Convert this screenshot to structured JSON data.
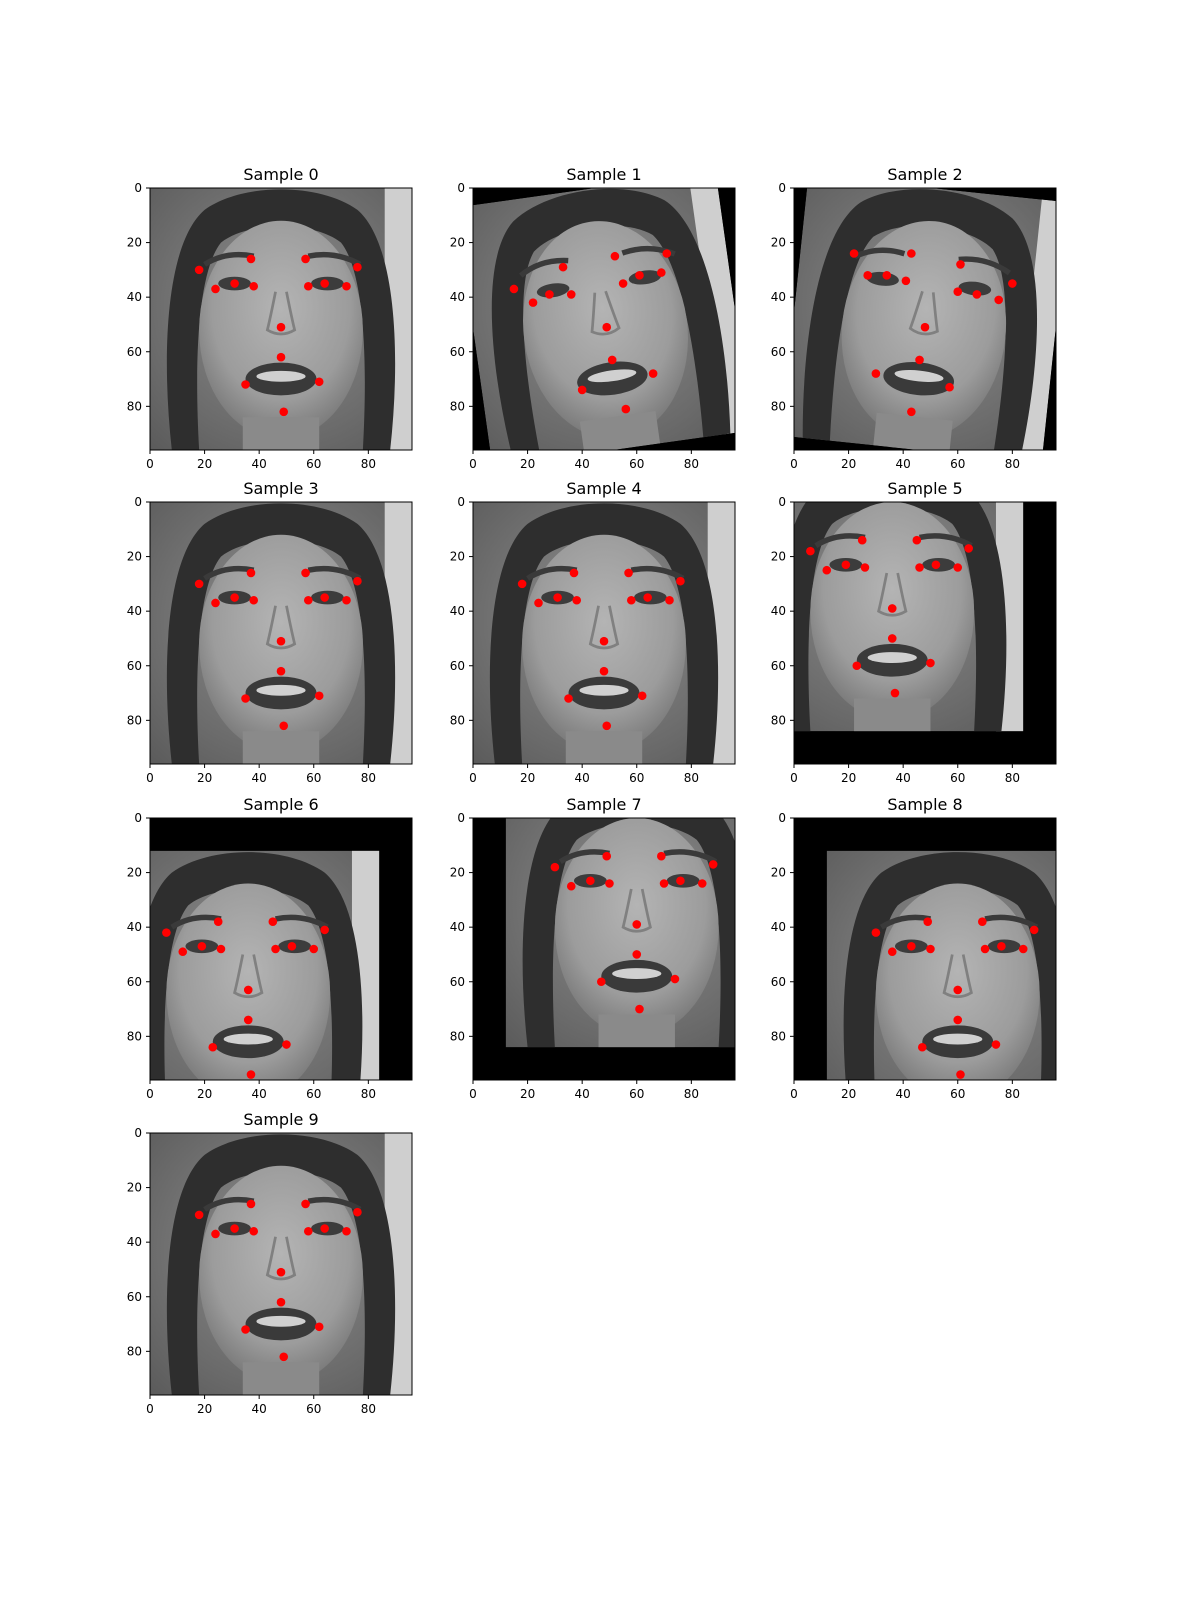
{
  "figure": {
    "panel_titles": [
      "Sample 0",
      "Sample 1",
      "Sample 2",
      "Sample 3",
      "Sample 4",
      "Sample 5",
      "Sample 6",
      "Sample 7",
      "Sample 8",
      "Sample 9"
    ]
  },
  "chart_data": [
    {
      "type": "scatter",
      "title": "Sample 0",
      "xlim": [
        0,
        96
      ],
      "ylim": [
        96,
        0
      ],
      "x_ticks": [
        0,
        20,
        40,
        60,
        80
      ],
      "y_ticks": [
        0,
        20,
        40,
        60,
        80
      ],
      "marker_color": "#ff0000",
      "image": "grayscale-face",
      "transform": {
        "rot": 0,
        "tx": 0,
        "ty": 0
      },
      "points": [
        [
          18,
          30
        ],
        [
          37,
          26
        ],
        [
          24,
          37
        ],
        [
          31,
          35
        ],
        [
          38,
          36
        ],
        [
          57,
          26
        ],
        [
          76,
          29
        ],
        [
          58,
          36
        ],
        [
          64,
          35
        ],
        [
          72,
          36
        ],
        [
          48,
          51
        ],
        [
          48,
          62
        ],
        [
          35,
          72
        ],
        [
          62,
          71
        ],
        [
          49,
          82
        ]
      ]
    },
    {
      "type": "scatter",
      "title": "Sample 1",
      "xlim": [
        0,
        96
      ],
      "ylim": [
        96,
        0
      ],
      "x_ticks": [
        0,
        20,
        40,
        60,
        80
      ],
      "y_ticks": [
        0,
        20,
        40,
        60,
        80
      ],
      "marker_color": "#ff0000",
      "image": "grayscale-face",
      "transform": {
        "rot": -8,
        "tx": 0,
        "ty": 0
      },
      "points": [
        [
          15,
          37
        ],
        [
          33,
          29
        ],
        [
          22,
          42
        ],
        [
          28,
          39
        ],
        [
          36,
          39
        ],
        [
          52,
          25
        ],
        [
          71,
          24
        ],
        [
          55,
          35
        ],
        [
          61,
          32
        ],
        [
          69,
          31
        ],
        [
          49,
          51
        ],
        [
          51,
          63
        ],
        [
          40,
          74
        ],
        [
          66,
          68
        ],
        [
          56,
          81
        ]
      ]
    },
    {
      "type": "scatter",
      "title": "Sample 2",
      "xlim": [
        0,
        96
      ],
      "ylim": [
        96,
        0
      ],
      "x_ticks": [
        0,
        20,
        40,
        60,
        80
      ],
      "y_ticks": [
        0,
        20,
        40,
        60,
        80
      ],
      "marker_color": "#ff0000",
      "image": "grayscale-face",
      "transform": {
        "rot": 6,
        "tx": 0,
        "ty": 0
      },
      "points": [
        [
          22,
          24
        ],
        [
          43,
          24
        ],
        [
          27,
          32
        ],
        [
          34,
          32
        ],
        [
          41,
          34
        ],
        [
          61,
          28
        ],
        [
          80,
          35
        ],
        [
          60,
          38
        ],
        [
          67,
          39
        ],
        [
          75,
          41
        ],
        [
          48,
          51
        ],
        [
          46,
          63
        ],
        [
          30,
          68
        ],
        [
          57,
          73
        ],
        [
          43,
          82
        ]
      ]
    },
    {
      "type": "scatter",
      "title": "Sample 3",
      "xlim": [
        0,
        96
      ],
      "ylim": [
        96,
        0
      ],
      "x_ticks": [
        0,
        20,
        40,
        60,
        80
      ],
      "y_ticks": [
        0,
        20,
        40,
        60,
        80
      ],
      "marker_color": "#ff0000",
      "image": "grayscale-face",
      "transform": {
        "rot": 0,
        "tx": 0,
        "ty": 0
      },
      "points": [
        [
          18,
          30
        ],
        [
          37,
          26
        ],
        [
          24,
          37
        ],
        [
          31,
          35
        ],
        [
          38,
          36
        ],
        [
          57,
          26
        ],
        [
          76,
          29
        ],
        [
          58,
          36
        ],
        [
          64,
          35
        ],
        [
          72,
          36
        ],
        [
          48,
          51
        ],
        [
          48,
          62
        ],
        [
          35,
          72
        ],
        [
          62,
          71
        ],
        [
          49,
          82
        ]
      ]
    },
    {
      "type": "scatter",
      "title": "Sample 4",
      "xlim": [
        0,
        96
      ],
      "ylim": [
        96,
        0
      ],
      "x_ticks": [
        0,
        20,
        40,
        60,
        80
      ],
      "y_ticks": [
        0,
        20,
        40,
        60,
        80
      ],
      "marker_color": "#ff0000",
      "image": "grayscale-face",
      "transform": {
        "rot": 0,
        "tx": 0,
        "ty": 0
      },
      "points": [
        [
          18,
          30
        ],
        [
          37,
          26
        ],
        [
          24,
          37
        ],
        [
          31,
          35
        ],
        [
          38,
          36
        ],
        [
          57,
          26
        ],
        [
          76,
          29
        ],
        [
          58,
          36
        ],
        [
          64,
          35
        ],
        [
          72,
          36
        ],
        [
          48,
          51
        ],
        [
          48,
          62
        ],
        [
          35,
          72
        ],
        [
          62,
          71
        ],
        [
          49,
          82
        ]
      ]
    },
    {
      "type": "scatter",
      "title": "Sample 5",
      "xlim": [
        0,
        96
      ],
      "ylim": [
        96,
        0
      ],
      "x_ticks": [
        0,
        20,
        40,
        60,
        80
      ],
      "y_ticks": [
        0,
        20,
        40,
        60,
        80
      ],
      "marker_color": "#ff0000",
      "image": "grayscale-face",
      "transform": {
        "rot": 0,
        "tx": -12,
        "ty": -12
      },
      "points": [
        [
          6,
          18
        ],
        [
          25,
          14
        ],
        [
          12,
          25
        ],
        [
          19,
          23
        ],
        [
          26,
          24
        ],
        [
          45,
          14
        ],
        [
          64,
          17
        ],
        [
          46,
          24
        ],
        [
          52,
          23
        ],
        [
          60,
          24
        ],
        [
          36,
          39
        ],
        [
          36,
          50
        ],
        [
          23,
          60
        ],
        [
          50,
          59
        ],
        [
          37,
          70
        ]
      ]
    },
    {
      "type": "scatter",
      "title": "Sample 6",
      "xlim": [
        0,
        96
      ],
      "ylim": [
        96,
        0
      ],
      "x_ticks": [
        0,
        20,
        40,
        60,
        80
      ],
      "y_ticks": [
        0,
        20,
        40,
        60,
        80
      ],
      "marker_color": "#ff0000",
      "image": "grayscale-face",
      "transform": {
        "rot": 0,
        "tx": -12,
        "ty": 12
      },
      "points": [
        [
          6,
          42
        ],
        [
          25,
          38
        ],
        [
          12,
          49
        ],
        [
          19,
          47
        ],
        [
          26,
          48
        ],
        [
          45,
          38
        ],
        [
          64,
          41
        ],
        [
          46,
          48
        ],
        [
          52,
          47
        ],
        [
          60,
          48
        ],
        [
          36,
          63
        ],
        [
          36,
          74
        ],
        [
          23,
          84
        ],
        [
          50,
          83
        ],
        [
          37,
          94
        ]
      ]
    },
    {
      "type": "scatter",
      "title": "Sample 7",
      "xlim": [
        0,
        96
      ],
      "ylim": [
        96,
        0
      ],
      "x_ticks": [
        0,
        20,
        40,
        60,
        80
      ],
      "y_ticks": [
        0,
        20,
        40,
        60,
        80
      ],
      "marker_color": "#ff0000",
      "image": "grayscale-face",
      "transform": {
        "rot": 0,
        "tx": 12,
        "ty": -12
      },
      "points": [
        [
          30,
          18
        ],
        [
          49,
          14
        ],
        [
          36,
          25
        ],
        [
          43,
          23
        ],
        [
          50,
          24
        ],
        [
          69,
          14
        ],
        [
          88,
          17
        ],
        [
          70,
          24
        ],
        [
          76,
          23
        ],
        [
          84,
          24
        ],
        [
          60,
          39
        ],
        [
          60,
          50
        ],
        [
          47,
          60
        ],
        [
          74,
          59
        ],
        [
          61,
          70
        ]
      ]
    },
    {
      "type": "scatter",
      "title": "Sample 8",
      "xlim": [
        0,
        96
      ],
      "ylim": [
        96,
        0
      ],
      "x_ticks": [
        0,
        20,
        40,
        60,
        80
      ],
      "y_ticks": [
        0,
        20,
        40,
        60,
        80
      ],
      "marker_color": "#ff0000",
      "image": "grayscale-face",
      "transform": {
        "rot": 0,
        "tx": 12,
        "ty": 12
      },
      "points": [
        [
          30,
          42
        ],
        [
          49,
          38
        ],
        [
          36,
          49
        ],
        [
          43,
          47
        ],
        [
          50,
          48
        ],
        [
          69,
          38
        ],
        [
          88,
          41
        ],
        [
          70,
          48
        ],
        [
          76,
          47
        ],
        [
          84,
          48
        ],
        [
          60,
          63
        ],
        [
          60,
          74
        ],
        [
          47,
          84
        ],
        [
          74,
          83
        ],
        [
          61,
          94
        ]
      ]
    },
    {
      "type": "scatter",
      "title": "Sample 9",
      "xlim": [
        0,
        96
      ],
      "ylim": [
        96,
        0
      ],
      "x_ticks": [
        0,
        20,
        40,
        60,
        80
      ],
      "y_ticks": [
        0,
        20,
        40,
        60,
        80
      ],
      "marker_color": "#ff0000",
      "image": "grayscale-face",
      "transform": {
        "rot": 0,
        "tx": 0,
        "ty": 0
      },
      "points": [
        [
          18,
          30
        ],
        [
          37,
          26
        ],
        [
          24,
          37
        ],
        [
          31,
          35
        ],
        [
          38,
          36
        ],
        [
          57,
          26
        ],
        [
          76,
          29
        ],
        [
          58,
          36
        ],
        [
          64,
          35
        ],
        [
          72,
          36
        ],
        [
          48,
          51
        ],
        [
          48,
          62
        ],
        [
          35,
          72
        ],
        [
          62,
          71
        ],
        [
          49,
          82
        ]
      ]
    }
  ]
}
